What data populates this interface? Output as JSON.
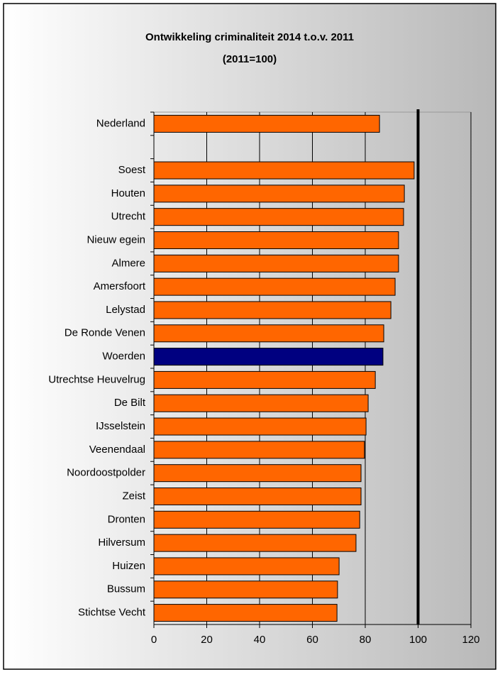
{
  "chart_data": {
    "type": "hbar",
    "title": "Ontwikkeling criminaliteit 2014 t.o.v. 2011",
    "subtitle": "(2011=100)",
    "categories": [
      "Nederland",
      null,
      "Soest",
      "Houten",
      "Utrecht",
      "Nieuw egein",
      "Almere",
      "Amersfoort",
      "Lelystad",
      "De Ronde Venen",
      "Woerden",
      "Utrechtse Heuvelrug",
      "De Bilt",
      "IJsselstein",
      "Veenendaal",
      "Noordoostpolder",
      "Zeist",
      "Dronten",
      "Hilversum",
      "Huizen",
      "Bussum",
      "Stichtse Vecht"
    ],
    "values": [
      85.4,
      null,
      98.5,
      94.8,
      94.5,
      92.6,
      92.6,
      91.3,
      89.7,
      87,
      86.7,
      83.8,
      81.1,
      80.3,
      79.7,
      78.4,
      78.4,
      77.9,
      76.5,
      70.1,
      69.5,
      69.3
    ],
    "colors": [
      "#ff6600",
      null,
      "#ff6600",
      "#ff6600",
      "#ff6600",
      "#ff6600",
      "#ff6600",
      "#ff6600",
      "#ff6600",
      "#ff6600",
      "#000080",
      "#ff6600",
      "#ff6600",
      "#ff6600",
      "#ff6600",
      "#ff6600",
      "#ff6600",
      "#ff6600",
      "#ff6600",
      "#ff6600",
      "#ff6600",
      "#ff6600"
    ],
    "xlim": [
      0,
      120
    ],
    "xticks": [
      0,
      20,
      40,
      60,
      80,
      100,
      120
    ],
    "grid": true,
    "reference_line": 100
  }
}
